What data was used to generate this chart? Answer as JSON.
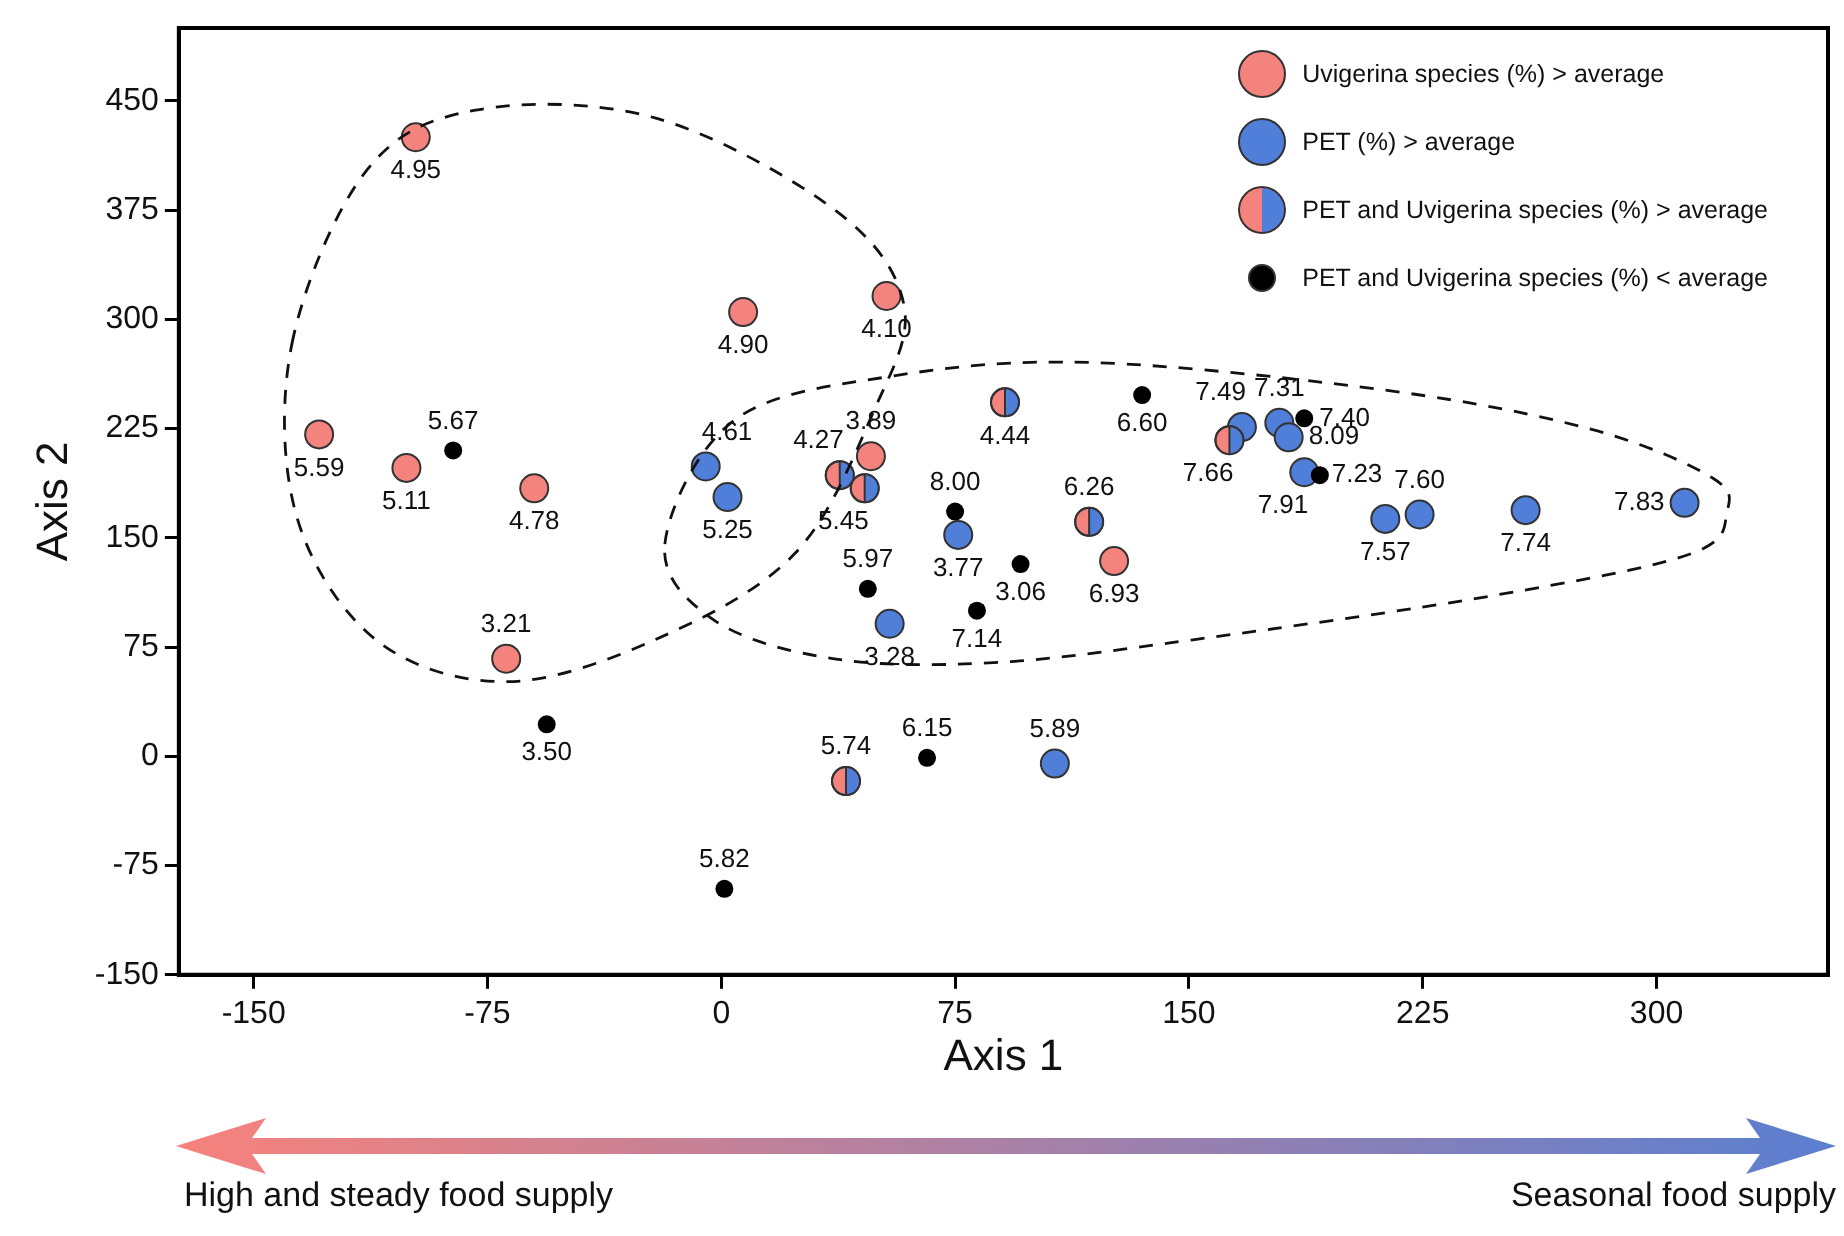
{
  "chart_data": {
    "type": "scatter",
    "xlabel": "Axis 1",
    "ylabel": "Axis 2",
    "xlim": [
      -174,
      355
    ],
    "xticks": [
      -150,
      -75,
      0,
      75,
      150,
      225,
      300
    ],
    "ylim": [
      -150,
      500
    ],
    "yticks": [
      -150,
      -75,
      0,
      75,
      150,
      225,
      300,
      375,
      450
    ],
    "grid": false,
    "legend": "top right",
    "marker": "circle",
    "annotations": [
      "High and steady food supply",
      "Seasonal food supply",
      {
        "text": "4.95",
        "x": -98,
        "y": 425
      },
      {
        "text": "4.90",
        "x": 7,
        "y": 305
      },
      {
        "text": "4.10",
        "x": 53,
        "y": 316
      },
      {
        "text": "5.59",
        "x": -129,
        "y": 221
      },
      {
        "text": "5.11",
        "x": -101,
        "y": 198
      },
      {
        "text": "4.78",
        "x": -60,
        "y": 184
      },
      {
        "text": "3.21",
        "x": -69,
        "y": 67
      },
      {
        "text": "3.89",
        "x": 48,
        "y": 206
      },
      {
        "text": "6.93",
        "x": 126,
        "y": 134
      },
      {
        "text": "4.61",
        "x": -5,
        "y": 199
      },
      {
        "text": "5.25",
        "x": 2,
        "y": 178
      },
      {
        "text": "3.77",
        "x": 76,
        "y": 152
      },
      {
        "text": "3.28",
        "x": 54,
        "y": 91
      },
      {
        "text": "7.49",
        "x": 167,
        "y": 226
      },
      {
        "text": "7.31",
        "x": 179,
        "y": 229
      },
      {
        "text": "8.09",
        "x": 182,
        "y": 219
      },
      {
        "text": "7.91",
        "x": 187,
        "y": 195
      },
      {
        "text": "7.57",
        "x": 213,
        "y": 163
      },
      {
        "text": "7.60",
        "x": 224,
        "y": 166
      },
      {
        "text": "7.74",
        "x": 258,
        "y": 169
      },
      {
        "text": "7.83",
        "x": 309,
        "y": 174
      },
      {
        "text": "5.89",
        "x": 107,
        "y": -5
      },
      {
        "text": "4.44",
        "x": 91,
        "y": 243
      },
      {
        "text": "4.27",
        "x": 38,
        "y": 193
      },
      {
        "text": "5.45",
        "x": 46,
        "y": 184
      },
      {
        "text": "6.26",
        "x": 118,
        "y": 161
      },
      {
        "text": "7.66",
        "x": 163,
        "y": 217
      },
      {
        "text": "5.74",
        "x": 40,
        "y": -17
      },
      {
        "text": "5.67",
        "x": -86,
        "y": 210
      },
      {
        "text": "6.60",
        "x": 135,
        "y": 248
      },
      {
        "text": "8.00",
        "x": 75,
        "y": 168
      },
      {
        "text": "3.06",
        "x": 96,
        "y": 132
      },
      {
        "text": "5.97",
        "x": 47,
        "y": 115
      },
      {
        "text": "7.14",
        "x": 82,
        "y": 100
      },
      {
        "text": "7.40",
        "x": 187,
        "y": 232
      },
      {
        "text": "7.23",
        "x": 191,
        "y": 193
      },
      {
        "text": "3.50",
        "x": -56,
        "y": 22
      },
      {
        "text": "5.82",
        "x": 1,
        "y": -91
      },
      {
        "text": "6.15",
        "x": 66,
        "y": -1
      }
    ],
    "series": [
      {
        "name": "Uvigerina species (%) > average",
        "color": "#f4837d",
        "x": [
          -98,
          7,
          53,
          -129,
          -101,
          -60,
          -69,
          48,
          126
        ],
        "values": [
          425,
          305,
          316,
          221,
          198,
          184,
          67,
          206,
          134
        ]
      },
      {
        "name": "PET (%) > average",
        "color": "#4f7fd8",
        "x": [
          -5,
          2,
          76,
          54,
          167,
          179,
          182,
          187,
          213,
          224,
          258,
          309,
          107
        ],
        "values": [
          199,
          178,
          152,
          91,
          226,
          229,
          219,
          195,
          163,
          166,
          169,
          174,
          -5
        ]
      },
      {
        "name": "PET and Uvigerina species (%) > average",
        "color": "#f4837d",
        "x": [
          91,
          38,
          46,
          118,
          163,
          40
        ],
        "values": [
          243,
          193,
          184,
          161,
          217,
          -17
        ]
      },
      {
        "name": "PET and Uvigerina species (%) < average",
        "color": "#000000",
        "x": [
          -86,
          135,
          75,
          96,
          47,
          82,
          187,
          192,
          -56,
          1,
          66
        ],
        "values": [
          210,
          248,
          168,
          132,
          115,
          100,
          232,
          193,
          22,
          -91,
          -1
        ]
      }
    ]
  }
}
